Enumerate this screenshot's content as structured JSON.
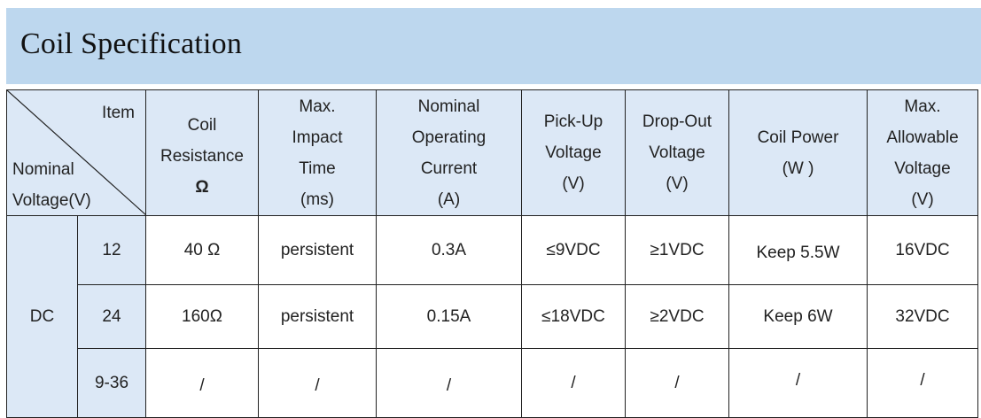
{
  "title": "Coil Specification",
  "header": {
    "item_label": "Item",
    "nominal_voltage_label_line1": "Nominal",
    "nominal_voltage_label_line2": "Voltage(V)",
    "columns": [
      {
        "lines": [
          "Coil",
          "Resistance",
          "Ω"
        ]
      },
      {
        "lines": [
          "Max.",
          "Impact",
          "Time",
          "(ms)"
        ]
      },
      {
        "lines": [
          "Nominal",
          "Operating",
          "Current",
          "(A)"
        ]
      },
      {
        "lines": [
          "Pick-Up",
          "Voltage",
          "(V)"
        ]
      },
      {
        "lines": [
          "Drop-Out",
          "Voltage",
          "(V)"
        ]
      },
      {
        "lines": [
          "Coil Power",
          "(W )"
        ]
      },
      {
        "lines": [
          "Max.",
          "Allowable",
          "Voltage",
          "(V)"
        ]
      }
    ]
  },
  "group_label": "DC",
  "rows": [
    {
      "voltage": "12",
      "cells": [
        "40 Ω",
        "persistent",
        "0.3A",
        "≤9VDC",
        "≥1VDC",
        "Keep 5.5W",
        "16VDC"
      ]
    },
    {
      "voltage": "24",
      "cells": [
        "160Ω",
        "persistent",
        "0.15A",
        "≤18VDC",
        "≥2VDC",
        "Keep 6W",
        "32VDC"
      ]
    },
    {
      "voltage": "9-36",
      "cells": [
        "/",
        "/",
        "/",
        "/",
        "/",
        "/",
        "/"
      ]
    }
  ],
  "colors": {
    "title_bar": "#bdd7ee",
    "header_fill": "#dce8f6",
    "border": "#222222"
  }
}
